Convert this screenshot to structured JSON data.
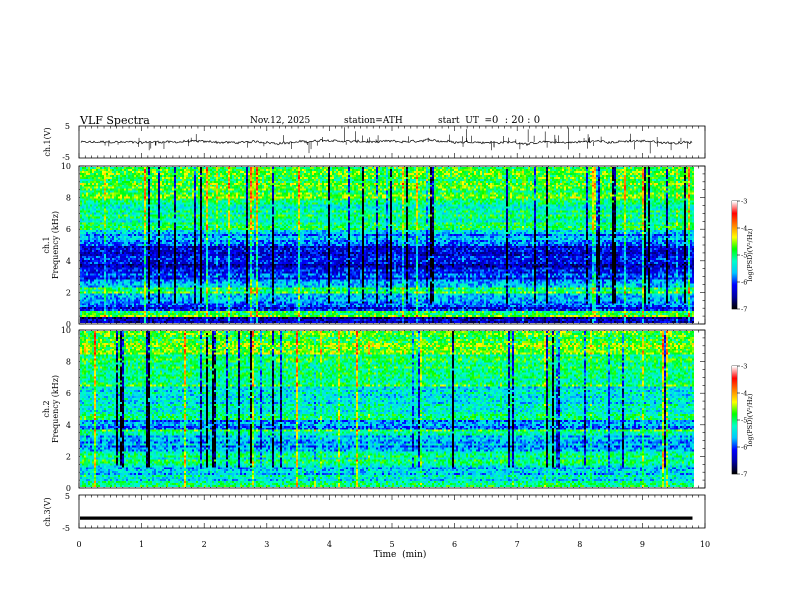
{
  "header": {
    "title": "VLF  Spectra",
    "date": "Nov.12, 2025",
    "station": "station=ATH",
    "start_ut_label": "start  UT  =",
    "start_ut_value": "0  : 20 : 0"
  },
  "chart_data": {
    "type": "heatmap",
    "x_axis": {
      "label": "Time  (min)",
      "range": [
        0,
        10
      ],
      "ticks": [
        0,
        1,
        2,
        3,
        4,
        5,
        6,
        7,
        8,
        9,
        10
      ],
      "tick_labels": [
        "0",
        "1",
        "2",
        "3",
        "4",
        "5",
        "6",
        "7",
        "8",
        "9",
        "10"
      ],
      "data_end": 9.8
    },
    "panels": [
      {
        "id": "ch1-waveform",
        "type": "line",
        "ylabel": "ch.1(V)",
        "ylim": [
          -5,
          5
        ],
        "tick_labels": [
          "5",
          "-5"
        ],
        "baseline": 0,
        "color": "#000000"
      },
      {
        "id": "ch1-spectrogram",
        "type": "heatmap",
        "ylabel": "ch.1\nFrequency  (kHz)",
        "ylabel_line1": "ch.1",
        "ylabel_line2": "Frequency  (kHz)",
        "ylim": [
          0,
          10
        ],
        "tick_labels": [
          "0",
          "2",
          "4",
          "6",
          "8",
          "10"
        ],
        "colorbar": {
          "label": "log(PSD)(V²/Hz)",
          "range": [
            -7,
            -3
          ],
          "tick_labels": [
            "-3",
            "-4",
            "-5",
            "-6",
            "-7"
          ]
        }
      },
      {
        "id": "ch2-spectrogram",
        "type": "heatmap",
        "ylabel": "ch.2\nFrequency  (kHz)",
        "ylabel_line1": "ch.2",
        "ylabel_line2": "Frequency  (kHz)",
        "ylim": [
          0,
          10
        ],
        "tick_labels": [
          "0",
          "2",
          "4",
          "6",
          "8",
          "10"
        ],
        "colorbar": {
          "label": "log(PSD)(V²/Hz)",
          "range": [
            -7,
            -3
          ],
          "tick_labels": [
            "-3",
            "-4",
            "-5",
            "-6",
            "-7"
          ]
        }
      },
      {
        "id": "ch3-waveform",
        "type": "line",
        "ylabel": "ch.3(V)",
        "ylim": [
          -5,
          5
        ],
        "tick_labels": [
          "5",
          "-5"
        ],
        "baseline": -2,
        "color": "#000000"
      }
    ],
    "colormap": [
      "#000000",
      "#0000a0",
      "#0000ff",
      "#00c8ff",
      "#00ffc8",
      "#00ff00",
      "#ffff00",
      "#ff8000",
      "#ff0000",
      "#ffffff"
    ]
  }
}
